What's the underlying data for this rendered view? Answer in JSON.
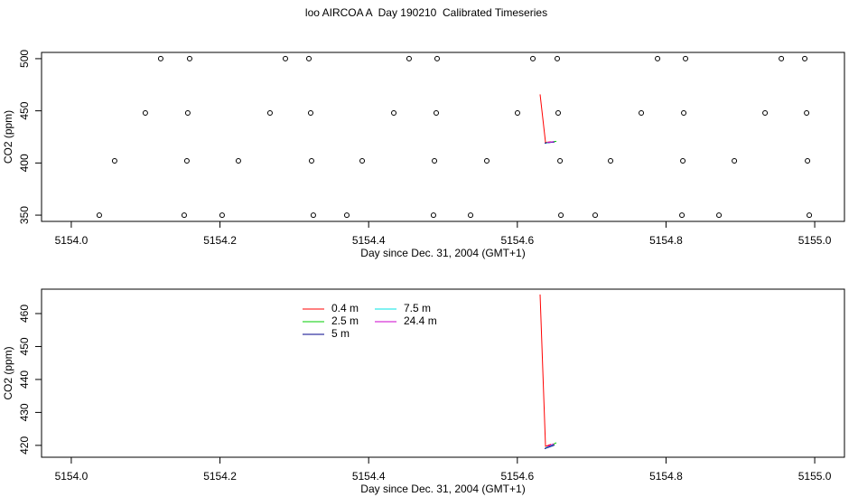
{
  "title": "loo AIRCOA A  Day 190210  Calibrated Timeseries",
  "chart_data": [
    {
      "type": "scatter",
      "xlabel": "Day since Dec. 31, 2004 (GMT+1)",
      "ylabel": "CO2 (ppm)",
      "xlim": [
        5153.96,
        5155.04
      ],
      "ylim": [
        344,
        506
      ],
      "xticks": [
        {
          "value": 5154.0,
          "label": "5154.0"
        },
        {
          "value": 5154.2,
          "label": "5154.2"
        },
        {
          "value": 5154.4,
          "label": "5154.4"
        },
        {
          "value": 5154.6,
          "label": "5154.6"
        },
        {
          "value": 5154.8,
          "label": "5154.8"
        },
        {
          "value": 5155.0,
          "label": "5155.0"
        }
      ],
      "yticks": [
        350,
        400,
        450,
        500
      ],
      "legend": false,
      "series": [
        {
          "mode": "markers",
          "color": "#000000",
          "x": [
            5154.1203,
            5154.1592,
            5154.288,
            5154.3196,
            5154.4544,
            5154.4921,
            5154.6209,
            5154.6537,
            5154.7886,
            5154.8262,
            5154.9551,
            5154.9866,
            5154.0996,
            5154.1567,
            5154.2673,
            5154.322,
            5154.4338,
            5154.4909,
            5154.6002,
            5154.6549,
            5154.7667,
            5154.8238,
            5154.9332,
            5154.9891,
            5154.0583,
            5154.1555,
            5154.2248,
            5154.3232,
            5154.3913,
            5154.4885,
            5154.5589,
            5154.6574,
            5154.7254,
            5154.8226,
            5154.8919,
            5154.9903,
            5154.0377,
            5154.1519,
            5154.2029,
            5154.3256,
            5154.3706,
            5154.4872,
            5154.5371,
            5154.6586,
            5154.7047,
            5154.8214,
            5154.8712,
            5154.9927
          ],
          "values": [
            500,
            500,
            500,
            500,
            500,
            500,
            500,
            500,
            500,
            500,
            500,
            500,
            448,
            448,
            448,
            448,
            448,
            448,
            448,
            448,
            448,
            448,
            448,
            448,
            402,
            402,
            402,
            402,
            402,
            402,
            402,
            402,
            402,
            402,
            402,
            402,
            350,
            350,
            350,
            350,
            350,
            350,
            350,
            350,
            350,
            350,
            350,
            350
          ]
        },
        {
          "mode": "lines",
          "name": "0.4 m",
          "color": "#ff0000",
          "x": [
            5154.6306,
            5154.6379,
            5154.6452
          ],
          "values": [
            465.8,
            419.7,
            420.3
          ]
        },
        {
          "mode": "lines",
          "name": "2.5 m",
          "color": "#00cc00",
          "x": [
            5154.638,
            5154.6525
          ],
          "values": [
            419.2,
            420.8
          ]
        },
        {
          "mode": "lines",
          "name": "5 m",
          "color": "#00008b",
          "x": [
            5154.6367,
            5154.6501
          ],
          "values": [
            419.0,
            420.1
          ]
        },
        {
          "mode": "lines",
          "name": "7.5 m",
          "color": "#00e5e5",
          "x": [
            5154.6391,
            5154.6476
          ],
          "values": [
            419.4,
            420.2
          ]
        },
        {
          "mode": "lines",
          "name": "24.4 m",
          "color": "#cc00cc",
          "x": [
            5154.6403,
            5154.6488
          ],
          "values": [
            419.6,
            420.5
          ]
        }
      ]
    },
    {
      "type": "line",
      "xlabel": "Day since Dec. 31, 2004 (GMT+1)",
      "ylabel": "CO2 (ppm)",
      "xlim": [
        5153.96,
        5155.04
      ],
      "ylim": [
        416.4,
        467.4
      ],
      "xticks": [
        {
          "value": 5154.0,
          "label": "5154.0"
        },
        {
          "value": 5154.2,
          "label": "5154.2"
        },
        {
          "value": 5154.4,
          "label": "5154.4"
        },
        {
          "value": 5154.6,
          "label": "5154.6"
        },
        {
          "value": 5154.8,
          "label": "5154.8"
        },
        {
          "value": 5155.0,
          "label": "5155.0"
        }
      ],
      "yticks": [
        420,
        430,
        440,
        450,
        460
      ],
      "legend": "top",
      "series": [
        {
          "mode": "lines",
          "name": "0.4 m",
          "color": "#ff0000",
          "x": [
            5154.6306,
            5154.6379,
            5154.6452
          ],
          "values": [
            465.8,
            419.7,
            420.3
          ]
        },
        {
          "mode": "lines",
          "name": "2.5 m",
          "color": "#00cc00",
          "x": [
            5154.638,
            5154.6525
          ],
          "values": [
            419.2,
            420.8
          ]
        },
        {
          "mode": "lines",
          "name": "5 m",
          "color": "#00008b",
          "x": [
            5154.6367,
            5154.6501
          ],
          "values": [
            419.0,
            420.1
          ]
        },
        {
          "mode": "lines",
          "name": "7.5 m",
          "color": "#00e5e5",
          "x": [
            5154.6391,
            5154.6476
          ],
          "values": [
            419.4,
            420.2
          ]
        },
        {
          "mode": "lines",
          "name": "24.4 m",
          "color": "#cc00cc",
          "x": [
            5154.6403,
            5154.6488
          ],
          "values": [
            419.6,
            420.5
          ]
        }
      ]
    }
  ]
}
